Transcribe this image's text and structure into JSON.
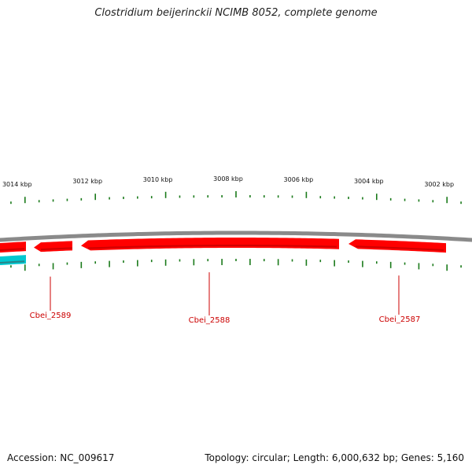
{
  "title": "Clostridium beijerinckii NCIMB 8052, complete genome",
  "footer": {
    "accession": "Accession: NC_009617",
    "summary": "Topology: circular; Length: 6,000,632 bp; Genes: 5,160"
  },
  "colors": {
    "backbone": "#8a8a8a",
    "forward_gene": "#ff0000",
    "reverse_gene": "#00c8d0",
    "ticks": "#1a7a1a",
    "label_line": "#cc0000"
  },
  "scale_labels": [
    {
      "text": "3014 kbp",
      "kbp": 3014
    },
    {
      "text": "3012 kbp",
      "kbp": 3012
    },
    {
      "text": "3010 kbp",
      "kbp": 3010
    },
    {
      "text": "3008 kbp",
      "kbp": 3008
    },
    {
      "text": "3006 kbp",
      "kbp": 3006
    },
    {
      "text": "3004 kbp",
      "kbp": 3004
    },
    {
      "text": "3002 kbp",
      "kbp": 3002
    }
  ],
  "genes": [
    {
      "label": "Cbei_2589"
    },
    {
      "label": "Cbei_2588"
    },
    {
      "label": "Cbei_2587"
    }
  ]
}
